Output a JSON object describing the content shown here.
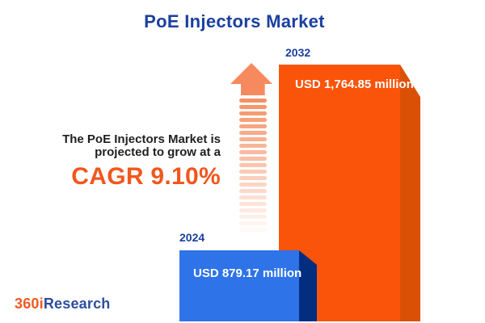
{
  "title": "PoE Injectors Market",
  "annotation": {
    "line1": "The PoE Injectors Market is",
    "line2": "projected to grow at a",
    "cagr": "CAGR 9.10%"
  },
  "chart_data": {
    "type": "bar",
    "title": "PoE Injectors Market",
    "categories": [
      "2024",
      "2032"
    ],
    "values": [
      879.17,
      1764.85
    ],
    "value_labels": [
      "USD 879.17 million",
      "USD 1,764.85 million"
    ],
    "unit": "USD million",
    "cagr_percent": 9.1,
    "growth_annotation": "The PoE Injectors Market is projected to grow at a CAGR 9.10%",
    "legend": "none",
    "grid": false,
    "series_colors": [
      "#2e73e8",
      "#fa540a"
    ]
  },
  "logo": {
    "part1": "360i",
    "part2": "Research"
  },
  "colors": {
    "title-blue": "#1b3fa0",
    "accent-orange": "#f1571d",
    "text-dark": "#1f1f1f",
    "bar-blue": "#2e73e8",
    "bar-blue-side": "#032e80",
    "bar-orange": "#fa540a",
    "bar-orange-side": "#da5106",
    "arrow-orange": "#f68a5e",
    "logo-orange": "#f15a22",
    "logo-blue": "#2c4da1"
  },
  "arrow": {
    "dash_count": 21
  }
}
